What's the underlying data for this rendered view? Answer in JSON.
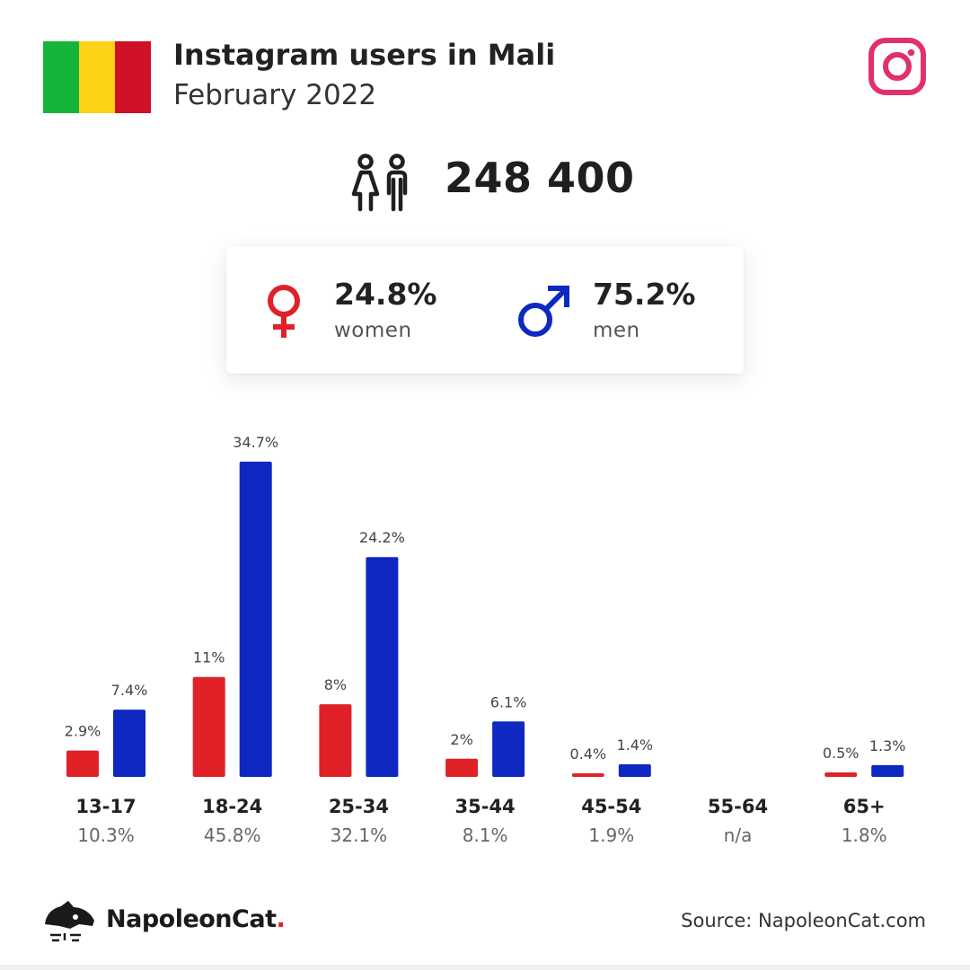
{
  "header": {
    "title": "Instagram users in Mali",
    "subtitle": "February 2022",
    "flag_colors": [
      "#14b53a",
      "#fcd116",
      "#ce1126"
    ]
  },
  "icons": {
    "instagram": "instagram-icon",
    "people": "people-icon",
    "female": "female-symbol-icon",
    "male": "male-symbol-icon",
    "logo": "napoleoncat-logo-icon"
  },
  "summary": {
    "total_users": "248 400",
    "women_pct": "24.8%",
    "women_label": "women",
    "men_pct": "75.2%",
    "men_label": "men"
  },
  "colors": {
    "women": "#e02128",
    "men": "#1028c2",
    "instagram": "#e1306c"
  },
  "chart_data": {
    "type": "bar",
    "categories": [
      "13-17",
      "18-24",
      "25-34",
      "35-44",
      "45-54",
      "55-64",
      "65+"
    ],
    "category_totals": [
      "10.3%",
      "45.8%",
      "32.1%",
      "8.1%",
      "1.9%",
      "n/a",
      "1.8%"
    ],
    "series": [
      {
        "key": "women",
        "values": [
          2.9,
          11,
          8,
          2,
          0.4,
          null,
          0.5
        ],
        "labels": [
          "2.9%",
          "11%",
          "8%",
          "2%",
          "0.4%",
          "",
          "0.5%"
        ]
      },
      {
        "key": "men",
        "values": [
          7.4,
          34.7,
          24.2,
          6.1,
          1.4,
          null,
          1.3
        ],
        "labels": [
          "7.4%",
          "34.7%",
          "24.2%",
          "6.1%",
          "1.4%",
          "",
          "1.3%"
        ]
      }
    ],
    "ylim": [
      0,
      34.7
    ],
    "grid": false
  },
  "footer": {
    "brand": "NapoleonCat",
    "brand_dot": ".",
    "source": "Source: NapoleonCat.com"
  }
}
